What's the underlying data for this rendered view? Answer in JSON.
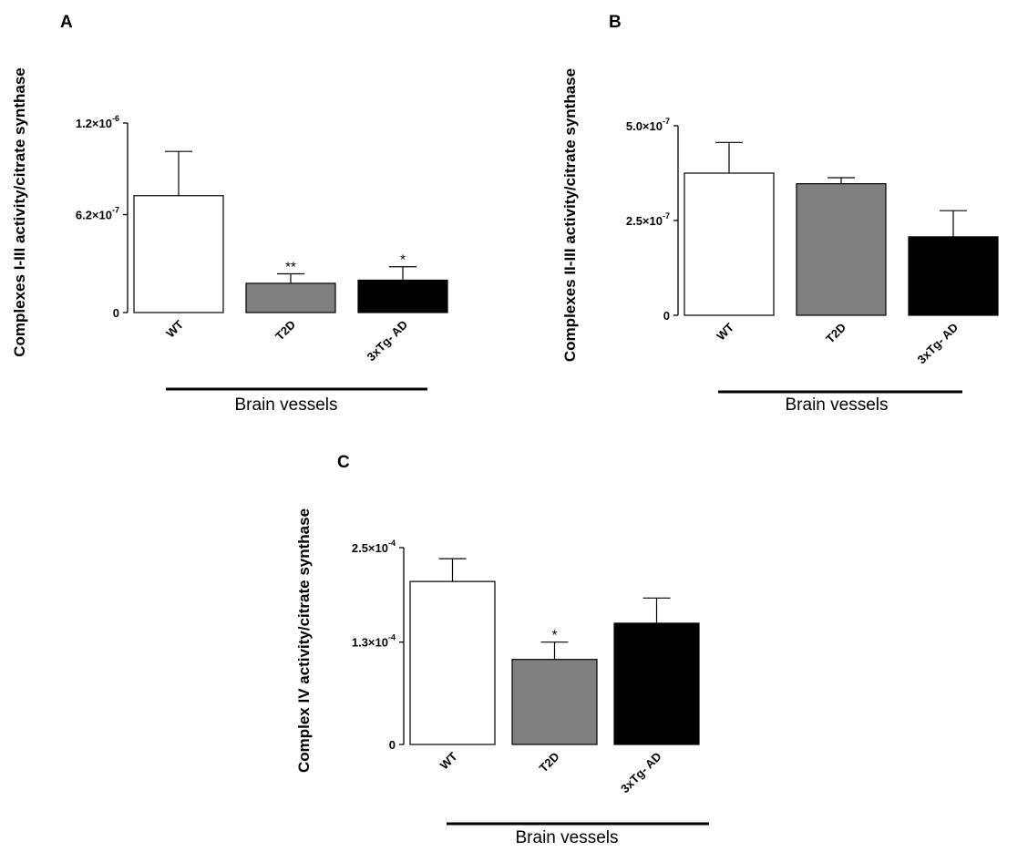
{
  "chart_data": [
    {
      "panel": "A",
      "type": "bar",
      "ylabel": "Complexes I-III activity/citrate synthase",
      "group_label": "Brain vessels",
      "categories": [
        "WT",
        "T2D",
        "3xTg- AD"
      ],
      "values": [
        7.4e-07,
        1.85e-07,
        2.05e-07
      ],
      "errors": [
        2.8e-07,
        6e-08,
        8.5e-08
      ],
      "significance": [
        "",
        "**",
        "*"
      ],
      "bar_colors": [
        "#ffffff",
        "#808080",
        "#000000"
      ],
      "ylim": [
        0,
        1.2e-06
      ],
      "ticks": [
        {
          "value": 0,
          "mantissa": "0",
          "exp": ""
        },
        {
          "value": 6.2e-07,
          "mantissa": "6.2×10",
          "exp": "-7"
        },
        {
          "value": 1.2e-06,
          "mantissa": "1.2×10",
          "exp": "-6"
        }
      ]
    },
    {
      "panel": "B",
      "type": "bar",
      "ylabel": "Complexes II-III activity/citrate synthase",
      "group_label": "Brain vessels",
      "categories": [
        "WT",
        "T2D",
        "3xTg- AD"
      ],
      "values": [
        3.75e-07,
        3.47e-07,
        2.07e-07
      ],
      "errors": [
        8.1e-08,
        1.6e-08,
        6.9e-08
      ],
      "significance": [
        "",
        "",
        ""
      ],
      "bar_colors": [
        "#ffffff",
        "#808080",
        "#000000"
      ],
      "ylim": [
        0,
        5e-07
      ],
      "ticks": [
        {
          "value": 0,
          "mantissa": "0",
          "exp": ""
        },
        {
          "value": 2.5e-07,
          "mantissa": "2.5×10",
          "exp": "-7"
        },
        {
          "value": 5e-07,
          "mantissa": "5.0×10",
          "exp": "-7"
        }
      ]
    },
    {
      "panel": "C",
      "type": "bar",
      "ylabel": "Complex IV activity/citrate synthase",
      "group_label": "Brain vessels",
      "categories": [
        "WT",
        "T2D",
        "3xTg- AD"
      ],
      "values": [
        0.000207,
        0.000108,
        0.000154
      ],
      "errors": [
        2.9e-05,
        2.2e-05,
        3.2e-05
      ],
      "significance": [
        "",
        "*",
        ""
      ],
      "bar_colors": [
        "#ffffff",
        "#808080",
        "#000000"
      ],
      "ylim": [
        0,
        0.00025
      ],
      "ticks": [
        {
          "value": 0,
          "mantissa": "0",
          "exp": ""
        },
        {
          "value": 0.00013,
          "mantissa": "1.3×10",
          "exp": "-4"
        },
        {
          "value": 0.00025,
          "mantissa": "2.5×10",
          "exp": "-4"
        }
      ]
    }
  ]
}
